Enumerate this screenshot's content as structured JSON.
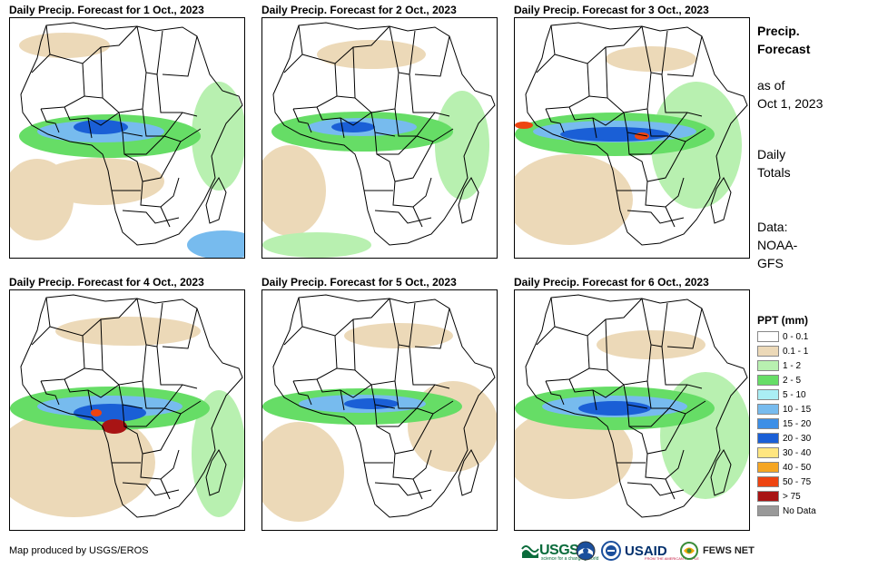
{
  "panels": [
    {
      "title": "Daily Precip. Forecast for 1 Oct., 2023"
    },
    {
      "title": "Daily Precip. Forecast for 2 Oct., 2023"
    },
    {
      "title": "Daily Precip. Forecast for 3 Oct., 2023"
    },
    {
      "title": "Daily Precip. Forecast for 4 Oct., 2023"
    },
    {
      "title": "Daily Precip. Forecast for 5 Oct., 2023"
    },
    {
      "title": "Daily Precip. Forecast for 6 Oct., 2023"
    }
  ],
  "sidebar": {
    "title_line1": "Precip.",
    "title_line2": "Forecast",
    "asof_line1": "as of",
    "asof_line2": "Oct 1, 2023",
    "daily_line1": "Daily",
    "daily_line2": "Totals",
    "data_line1": "Data:",
    "data_line2": "NOAA-",
    "data_line3": "GFS"
  },
  "legend": {
    "title": "PPT (mm)",
    "items": [
      {
        "label": "0 - 0.1",
        "color": "#ffffff"
      },
      {
        "label": "0.1 - 1",
        "color": "#ecd9b8"
      },
      {
        "label": "1 - 2",
        "color": "#b8f0b0"
      },
      {
        "label": "2 - 5",
        "color": "#66dd66"
      },
      {
        "label": "5 - 10",
        "color": "#aaeef4"
      },
      {
        "label": "10 - 15",
        "color": "#77bbee"
      },
      {
        "label": "15 - 20",
        "color": "#3d8fe6"
      },
      {
        "label": "20 - 30",
        "color": "#1a5fd6"
      },
      {
        "label": "30 - 40",
        "color": "#ffe680"
      },
      {
        "label": "40 - 50",
        "color": "#f5a623"
      },
      {
        "label": "50 - 75",
        "color": "#ee4411"
      },
      {
        "label": "> 75",
        "color": "#a81414"
      },
      {
        "label": "No Data",
        "color": "#999999"
      }
    ]
  },
  "credit": "Map produced by USGS/EROS",
  "logos": {
    "usgs": "USGS",
    "usgs_tagline": "science for a changing world",
    "usaid": "USAID",
    "usaid_tagline": "FROM THE AMERICAN PEOPLE",
    "fews": "FEWS NET"
  }
}
